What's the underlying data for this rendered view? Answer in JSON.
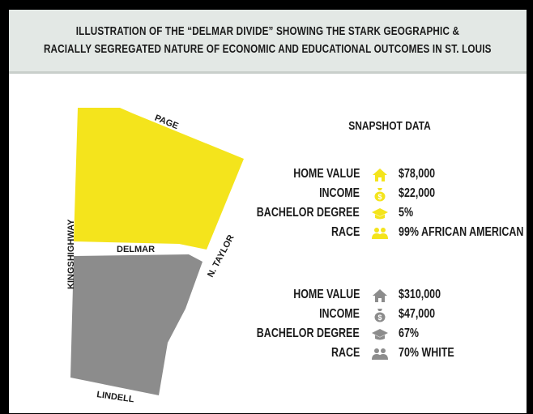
{
  "header": {
    "line1": "Illustration of the “Delmar Divide” showing the stark geographic &",
    "line2": "racially segregated nature of economic and educational outcomes in St. Louis"
  },
  "map": {
    "streets": {
      "page": "PAGE",
      "delmar": "DELMAR",
      "kingshighway": "KINGSHIGHWAY",
      "n_taylor": "N. TAYLOR",
      "lindell": "LINDELL"
    },
    "colors": {
      "north": "#f4e41c",
      "south": "#8c8c8c"
    }
  },
  "snapshot": {
    "title": "SNAPSHOT DATA",
    "north": {
      "color": "#f4e41c",
      "rows": [
        {
          "label": "HOME VALUE",
          "icon": "house-icon",
          "value": "$78,000"
        },
        {
          "label": "INCOME",
          "icon": "money-bag-icon",
          "value": "$22,000"
        },
        {
          "label": "BACHELOR DEGREE",
          "icon": "graduation-cap-icon",
          "value": "5%"
        },
        {
          "label": "RACE",
          "icon": "people-icon",
          "value": "99% AFRICAN AMERICAN"
        }
      ]
    },
    "south": {
      "color": "#8c8c8c",
      "rows": [
        {
          "label": "HOME VALUE",
          "icon": "house-icon",
          "value": "$310,000"
        },
        {
          "label": "INCOME",
          "icon": "money-bag-icon",
          "value": "$47,000"
        },
        {
          "label": "BACHELOR DEGREE",
          "icon": "graduation-cap-icon",
          "value": "67%"
        },
        {
          "label": "RACE",
          "icon": "people-icon",
          "value": "70% WHITE"
        }
      ]
    }
  }
}
